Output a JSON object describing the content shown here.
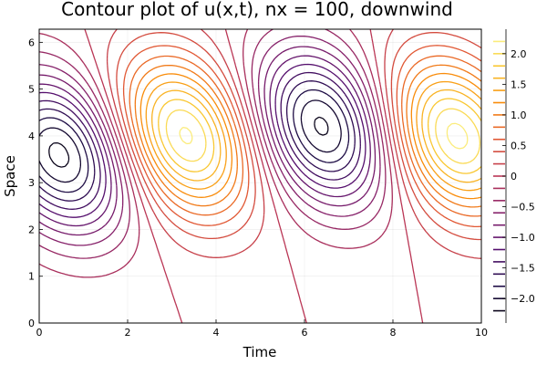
{
  "chart_data": {
    "type": "contour",
    "title": "Contour plot of u(x,t), nx = 100, downwind",
    "xlabel": "Time",
    "ylabel": "Space",
    "xlim": [
      0,
      10
    ],
    "ylim": [
      0,
      6.28
    ],
    "x_ticks": [
      0,
      2,
      4,
      6,
      8,
      10
    ],
    "x_tick_labels": [
      "0",
      "2",
      "4",
      "6",
      "8",
      "10"
    ],
    "y_ticks": [
      0,
      1,
      2,
      3,
      4,
      5,
      6
    ],
    "y_tick_labels": [
      "0",
      "1",
      "2",
      "3",
      "4",
      "5",
      "6"
    ],
    "grid": true,
    "colorbar": {
      "range": [
        -2.4,
        2.4
      ],
      "ticks": [
        2.0,
        1.5,
        1.0,
        0.5,
        0,
        -0.5,
        -1.0,
        -1.5,
        -2.0
      ],
      "tick_labels": [
        "2.0",
        "1.5",
        "1.0",
        "0.5",
        "0",
        "−0.5",
        "−1.0",
        "−1.5",
        "−2.0"
      ],
      "colormap": "inferno"
    },
    "levels": [
      -2.2,
      -2.0,
      -1.8,
      -1.6,
      -1.4,
      -1.2,
      -1.0,
      -0.8,
      -0.6,
      -0.4,
      -0.2,
      0.0,
      0.2,
      0.4,
      0.6,
      0.8,
      1.0,
      1.2,
      1.4,
      1.6,
      1.8,
      2.0,
      2.2
    ],
    "extrema": [
      {
        "t": 0.5,
        "x": 3.6,
        "kind": "min"
      },
      {
        "t": 6.4,
        "x": 4.2,
        "kind": "min"
      },
      {
        "t": 3.3,
        "x": 4.0,
        "kind": "max"
      },
      {
        "t": 9.4,
        "x": 4.0,
        "kind": "max"
      }
    ]
  }
}
